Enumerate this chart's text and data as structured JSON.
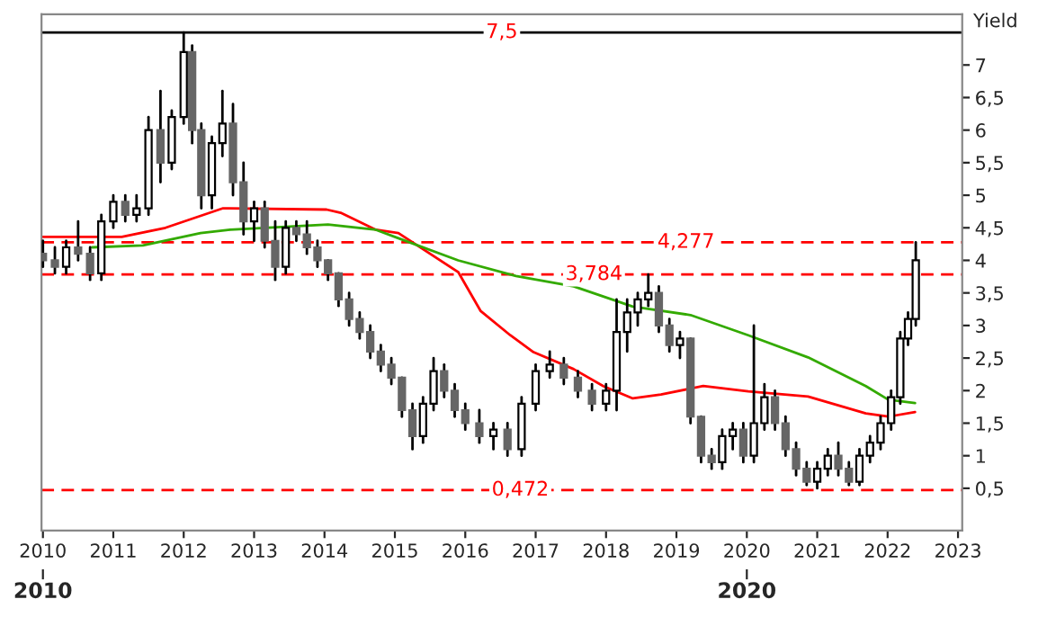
{
  "chart_data": {
    "type": "candlestick",
    "ylabel": "Yield",
    "x": [
      2010.0,
      2010.17,
      2010.33,
      2010.5,
      2010.67,
      2010.83,
      2011.0,
      2011.17,
      2011.33,
      2011.5,
      2011.67,
      2011.83,
      2012.0,
      2012.12,
      2012.25,
      2012.4,
      2012.55,
      2012.7,
      2012.85,
      2013.0,
      2013.15,
      2013.3,
      2013.45,
      2013.6,
      2013.75,
      2013.9,
      2014.05,
      2014.2,
      2014.35,
      2014.5,
      2014.65,
      2014.8,
      2014.95,
      2015.1,
      2015.25,
      2015.4,
      2015.55,
      2015.7,
      2015.85,
      2016.0,
      2016.2,
      2016.4,
      2016.6,
      2016.8,
      2017.0,
      2017.2,
      2017.4,
      2017.6,
      2017.8,
      2018.0,
      2018.15,
      2018.3,
      2018.45,
      2018.6,
      2018.75,
      2018.9,
      2019.05,
      2019.2,
      2019.35,
      2019.5,
      2019.65,
      2019.8,
      2019.95,
      2020.1,
      2020.25,
      2020.4,
      2020.55,
      2020.7,
      2020.85,
      2021.0,
      2021.15,
      2021.3,
      2021.45,
      2021.6,
      2021.75,
      2021.9,
      2022.05,
      2022.18,
      2022.29,
      2022.4
    ],
    "ohlc": [
      [
        4.1,
        4.3,
        3.9,
        4.0
      ],
      [
        4.0,
        4.2,
        3.8,
        3.9
      ],
      [
        3.9,
        4.3,
        3.8,
        4.2
      ],
      [
        4.2,
        4.6,
        4.0,
        4.1
      ],
      [
        4.1,
        4.2,
        3.7,
        3.8
      ],
      [
        3.8,
        4.7,
        3.7,
        4.6
      ],
      [
        4.6,
        5.0,
        4.5,
        4.9
      ],
      [
        4.9,
        5.0,
        4.6,
        4.7
      ],
      [
        4.7,
        5.0,
        4.6,
        4.8
      ],
      [
        4.8,
        6.2,
        4.7,
        6.0
      ],
      [
        6.0,
        6.6,
        5.2,
        5.5
      ],
      [
        5.5,
        6.3,
        5.4,
        6.2
      ],
      [
        6.2,
        7.5,
        6.1,
        7.2
      ],
      [
        7.2,
        7.3,
        5.8,
        6.0
      ],
      [
        6.0,
        6.1,
        4.8,
        5.0
      ],
      [
        5.0,
        5.9,
        4.8,
        5.8
      ],
      [
        5.8,
        6.6,
        5.6,
        6.1
      ],
      [
        6.1,
        6.4,
        5.0,
        5.2
      ],
      [
        5.2,
        5.5,
        4.4,
        4.6
      ],
      [
        4.6,
        4.9,
        4.3,
        4.8
      ],
      [
        4.8,
        4.9,
        4.2,
        4.3
      ],
      [
        4.3,
        4.6,
        3.7,
        3.9
      ],
      [
        3.9,
        4.6,
        3.8,
        4.5
      ],
      [
        4.5,
        4.6,
        4.3,
        4.4
      ],
      [
        4.4,
        4.6,
        4.1,
        4.2
      ],
      [
        4.2,
        4.3,
        3.9,
        4.0
      ],
      [
        4.0,
        4.0,
        3.7,
        3.8
      ],
      [
        3.8,
        3.8,
        3.3,
        3.4
      ],
      [
        3.4,
        3.5,
        3.0,
        3.1
      ],
      [
        3.1,
        3.2,
        2.8,
        2.9
      ],
      [
        2.9,
        3.0,
        2.5,
        2.6
      ],
      [
        2.6,
        2.7,
        2.3,
        2.4
      ],
      [
        2.4,
        2.5,
        2.1,
        2.2
      ],
      [
        2.2,
        2.2,
        1.6,
        1.7
      ],
      [
        1.7,
        1.8,
        1.1,
        1.3
      ],
      [
        1.3,
        1.9,
        1.2,
        1.8
      ],
      [
        1.8,
        2.5,
        1.7,
        2.3
      ],
      [
        2.3,
        2.4,
        1.9,
        2.0
      ],
      [
        2.0,
        2.1,
        1.6,
        1.7
      ],
      [
        1.7,
        1.8,
        1.4,
        1.5
      ],
      [
        1.5,
        1.7,
        1.2,
        1.3
      ],
      [
        1.3,
        1.5,
        1.1,
        1.4
      ],
      [
        1.4,
        1.5,
        1.0,
        1.1
      ],
      [
        1.1,
        1.9,
        1.0,
        1.8
      ],
      [
        1.8,
        2.4,
        1.7,
        2.3
      ],
      [
        2.3,
        2.6,
        2.2,
        2.4
      ],
      [
        2.4,
        2.5,
        2.1,
        2.2
      ],
      [
        2.2,
        2.3,
        1.9,
        2.0
      ],
      [
        2.0,
        2.1,
        1.7,
        1.8
      ],
      [
        1.8,
        2.1,
        1.7,
        2.0
      ],
      [
        2.0,
        3.4,
        1.7,
        2.9
      ],
      [
        2.9,
        3.4,
        2.6,
        3.2
      ],
      [
        3.2,
        3.5,
        3.0,
        3.4
      ],
      [
        3.4,
        3.784,
        3.3,
        3.5
      ],
      [
        3.5,
        3.6,
        2.9,
        3.0
      ],
      [
        3.0,
        3.1,
        2.6,
        2.7
      ],
      [
        2.7,
        2.9,
        2.5,
        2.8
      ],
      [
        2.8,
        2.8,
        1.5,
        1.6
      ],
      [
        1.6,
        1.6,
        0.9,
        1.0
      ],
      [
        1.0,
        1.1,
        0.8,
        0.9
      ],
      [
        0.9,
        1.4,
        0.8,
        1.3
      ],
      [
        1.3,
        1.5,
        1.1,
        1.4
      ],
      [
        1.4,
        1.5,
        0.9,
        1.0
      ],
      [
        1.0,
        3.0,
        0.9,
        1.5
      ],
      [
        1.5,
        2.1,
        1.4,
        1.9
      ],
      [
        1.9,
        2.0,
        1.4,
        1.5
      ],
      [
        1.5,
        1.6,
        1.0,
        1.1
      ],
      [
        1.1,
        1.2,
        0.7,
        0.8
      ],
      [
        0.8,
        0.9,
        0.55,
        0.6
      ],
      [
        0.6,
        0.9,
        0.5,
        0.8
      ],
      [
        0.8,
        1.1,
        0.7,
        1.0
      ],
      [
        1.0,
        1.2,
        0.7,
        0.8
      ],
      [
        0.8,
        0.9,
        0.55,
        0.6
      ],
      [
        0.6,
        1.1,
        0.55,
        1.0
      ],
      [
        1.0,
        1.3,
        0.9,
        1.2
      ],
      [
        1.2,
        1.6,
        1.1,
        1.5
      ],
      [
        1.5,
        2.0,
        1.4,
        1.9
      ],
      [
        1.9,
        2.9,
        1.8,
        2.8
      ],
      [
        2.8,
        3.2,
        2.7,
        3.1
      ],
      [
        3.1,
        4.277,
        3.0,
        4.0
      ]
    ],
    "series": [
      {
        "type": "line",
        "color": "#ff0000",
        "x": [
          2010.0,
          2011.12,
          2011.74,
          2012.56,
          2014.03,
          2014.23,
          2014.73,
          2015.05,
          2015.9,
          2016.22,
          2016.64,
          2016.97,
          2017.54,
          2017.96,
          2018.38,
          2018.78,
          2019.38,
          2020.02,
          2020.87,
          2021.69,
          2022.01,
          2022.39
        ],
        "values": [
          4.36,
          4.36,
          4.5,
          4.8,
          4.78,
          4.73,
          4.47,
          4.42,
          3.82,
          3.22,
          2.85,
          2.59,
          2.33,
          2.07,
          1.88,
          1.94,
          2.07,
          1.99,
          1.91,
          1.65,
          1.6,
          1.67
        ]
      },
      {
        "type": "line",
        "color": "#33aa00",
        "x": [
          2010.7,
          2011.42,
          2012.24,
          2012.66,
          2014.05,
          2014.73,
          2015.05,
          2015.9,
          2016.72,
          2017.54,
          2018.38,
          2019.2,
          2020.02,
          2020.87,
          2021.69,
          2022.01,
          2022.39
        ],
        "values": [
          4.2,
          4.23,
          4.42,
          4.47,
          4.55,
          4.47,
          4.34,
          4.0,
          3.76,
          3.6,
          3.29,
          3.16,
          2.85,
          2.51,
          2.07,
          1.86,
          1.81
        ]
      }
    ],
    "xlim": [
      2009.98,
      2023.06
    ],
    "ylim": [
      -0.15,
      7.78
    ],
    "xticks": [
      2010,
      2011,
      2012,
      2013,
      2014,
      2015,
      2016,
      2017,
      2018,
      2019,
      2020,
      2021,
      2022,
      2023
    ],
    "x2lim": [
      2009.98,
      2023.06
    ],
    "x2ticks": [
      2010,
      2020
    ],
    "yticks": [
      {
        "value": 0.5,
        "label": "0,5"
      },
      {
        "value": 1,
        "label": "1"
      },
      {
        "value": 1.5,
        "label": "1,5"
      },
      {
        "value": 2,
        "label": "2"
      },
      {
        "value": 2.5,
        "label": "2,5"
      },
      {
        "value": 3,
        "label": "3"
      },
      {
        "value": 3.5,
        "label": "3,5"
      },
      {
        "value": 4,
        "label": "4"
      },
      {
        "value": 4.5,
        "label": "4,5"
      },
      {
        "value": 5,
        "label": "5"
      },
      {
        "value": 5.5,
        "label": "5,5"
      },
      {
        "value": 6,
        "label": "6"
      },
      {
        "value": 6.5,
        "label": "6,5"
      },
      {
        "value": 7,
        "label": "7"
      }
    ],
    "ref_lines": [
      {
        "axis": "y",
        "value": 7.5,
        "label": "7,5",
        "color": "#000000",
        "line_style": "solid"
      },
      {
        "axis": "y",
        "value": 4.277,
        "label": "4,277",
        "color": "#ff0000",
        "line_style": "dashed"
      },
      {
        "axis": "y",
        "value": 3.784,
        "label": "3,784",
        "color": "#ff0000",
        "line_style": "dashed"
      },
      {
        "axis": "y",
        "value": 0.472,
        "label": "0,472",
        "color": "#ff0000",
        "line_style": "dashed"
      }
    ],
    "grid": false,
    "legend": false
  }
}
